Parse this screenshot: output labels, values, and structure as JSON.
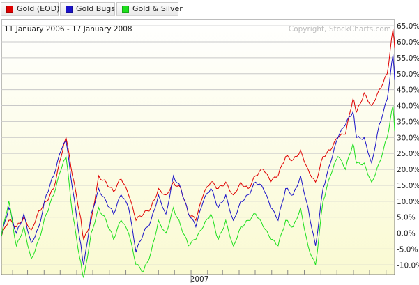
{
  "legend": {
    "items": [
      {
        "label": "Gold (EOD)",
        "color": "#e00000"
      },
      {
        "label": "Gold Bugs",
        "color": "#1a12c8"
      },
      {
        "label": "Gold & Silver",
        "color": "#1ee01e"
      }
    ]
  },
  "header": {
    "date_range": "11 January 2006 - 17 January 2008",
    "copyright": "Copyright, StockCharts.com"
  },
  "chart_data": {
    "type": "line",
    "title": "",
    "xlabel": "",
    "ylabel": "",
    "x_tick_labels": [
      "2007"
    ],
    "y_tick_labels": [
      "-10.0%",
      "-5.0%",
      "0.0%",
      "5.0%",
      "10.0%",
      "15.0%",
      "20.0%",
      "25.0%",
      "30.0%",
      "35.0%",
      "40.0%",
      "45.0%",
      "50.0%",
      "55.0%",
      "60.0%",
      "65.0%"
    ],
    "ylim": [
      -13,
      67
    ],
    "y_ticks": [
      -10,
      -5,
      0,
      5,
      10,
      15,
      20,
      25,
      30,
      35,
      40,
      45,
      50,
      55,
      60,
      65
    ],
    "xlim": [
      "2006-01-11",
      "2008-01-17"
    ],
    "grid": true,
    "legend": "top-left",
    "colors": {
      "plot_bg_top": "#ffffff",
      "plot_bg_bottom": "#fafad2",
      "grid": "#c8c8c8",
      "zero_line": "#000000"
    },
    "series": [
      {
        "name": "Gold (EOD)",
        "color": "#e00000",
        "x": [
          "2006-01-11",
          "2006-01-25",
          "2006-02-08",
          "2006-02-22",
          "2006-03-08",
          "2006-03-22",
          "2006-04-05",
          "2006-04-19",
          "2006-05-03",
          "2006-05-12",
          "2006-05-24",
          "2006-06-07",
          "2006-06-14",
          "2006-06-28",
          "2006-07-12",
          "2006-07-26",
          "2006-08-09",
          "2006-08-23",
          "2006-09-06",
          "2006-09-20",
          "2006-10-04",
          "2006-10-18",
          "2006-11-01",
          "2006-11-15",
          "2006-11-29",
          "2006-12-13",
          "2006-12-27",
          "2007-01-10",
          "2007-01-24",
          "2007-02-07",
          "2007-02-21",
          "2007-03-07",
          "2007-03-21",
          "2007-04-04",
          "2007-04-18",
          "2007-05-02",
          "2007-05-16",
          "2007-05-30",
          "2007-06-13",
          "2007-06-27",
          "2007-07-11",
          "2007-07-25",
          "2007-08-08",
          "2007-08-22",
          "2007-09-05",
          "2007-09-19",
          "2007-10-03",
          "2007-10-17",
          "2007-10-31",
          "2007-11-07",
          "2007-11-21",
          "2007-12-05",
          "2007-12-19",
          "2008-01-03",
          "2008-01-14",
          "2008-01-17"
        ],
        "y": [
          -1,
          4,
          2,
          5,
          1,
          7,
          10,
          14,
          24,
          30,
          18,
          6,
          -2,
          4,
          18,
          16,
          13,
          17,
          12,
          4,
          6,
          8,
          14,
          12,
          16,
          14,
          6,
          4,
          12,
          16,
          14,
          16,
          12,
          16,
          14,
          18,
          20,
          16,
          18,
          24,
          23,
          26,
          20,
          16,
          24,
          26,
          30,
          31,
          42,
          38,
          44,
          40,
          45,
          50,
          64,
          58
        ]
      },
      {
        "name": "Gold Bugs",
        "color": "#1a12c8",
        "x": [
          "2006-01-11",
          "2006-01-25",
          "2006-02-08",
          "2006-02-22",
          "2006-03-08",
          "2006-03-22",
          "2006-04-05",
          "2006-04-19",
          "2006-05-03",
          "2006-05-12",
          "2006-05-24",
          "2006-06-07",
          "2006-06-14",
          "2006-06-28",
          "2006-07-12",
          "2006-07-26",
          "2006-08-09",
          "2006-08-23",
          "2006-09-06",
          "2006-09-20",
          "2006-10-04",
          "2006-10-18",
          "2006-11-01",
          "2006-11-15",
          "2006-11-29",
          "2006-12-13",
          "2006-12-27",
          "2007-01-10",
          "2007-01-24",
          "2007-02-07",
          "2007-02-21",
          "2007-03-07",
          "2007-03-21",
          "2007-04-04",
          "2007-04-18",
          "2007-05-02",
          "2007-05-16",
          "2007-05-30",
          "2007-06-13",
          "2007-06-27",
          "2007-07-11",
          "2007-07-25",
          "2007-08-08",
          "2007-08-22",
          "2007-09-05",
          "2007-09-19",
          "2007-10-03",
          "2007-10-17",
          "2007-10-31",
          "2007-11-07",
          "2007-11-21",
          "2007-12-05",
          "2007-12-19",
          "2008-01-03",
          "2008-01-14",
          "2008-01-17"
        ],
        "y": [
          -1,
          8,
          0,
          6,
          -3,
          2,
          12,
          18,
          26,
          29,
          14,
          -2,
          -10,
          6,
          14,
          10,
          6,
          12,
          8,
          -6,
          0,
          4,
          12,
          6,
          18,
          14,
          6,
          2,
          10,
          14,
          8,
          12,
          4,
          10,
          12,
          16,
          14,
          8,
          4,
          14,
          12,
          18,
          8,
          -4,
          14,
          22,
          30,
          34,
          38,
          30,
          30,
          22,
          34,
          42,
          56,
          48
        ]
      },
      {
        "name": "Gold & Silver",
        "color": "#1ee01e",
        "x": [
          "2006-01-11",
          "2006-01-25",
          "2006-02-08",
          "2006-02-22",
          "2006-03-08",
          "2006-03-22",
          "2006-04-05",
          "2006-04-19",
          "2006-05-03",
          "2006-05-12",
          "2006-05-24",
          "2006-06-07",
          "2006-06-14",
          "2006-06-28",
          "2006-07-12",
          "2006-07-26",
          "2006-08-09",
          "2006-08-23",
          "2006-09-06",
          "2006-09-20",
          "2006-10-04",
          "2006-10-18",
          "2006-11-01",
          "2006-11-15",
          "2006-11-29",
          "2006-12-13",
          "2006-12-27",
          "2007-01-10",
          "2007-01-24",
          "2007-02-07",
          "2007-02-21",
          "2007-03-07",
          "2007-03-21",
          "2007-04-04",
          "2007-04-18",
          "2007-05-02",
          "2007-05-16",
          "2007-05-30",
          "2007-06-13",
          "2007-06-27",
          "2007-07-11",
          "2007-07-25",
          "2007-08-08",
          "2007-08-22",
          "2007-09-05",
          "2007-09-19",
          "2007-10-03",
          "2007-10-17",
          "2007-10-31",
          "2007-11-07",
          "2007-11-21",
          "2007-12-05",
          "2007-12-19",
          "2008-01-03",
          "2008-01-14",
          "2008-01-17"
        ],
        "y": [
          -1,
          10,
          -4,
          2,
          -8,
          -2,
          6,
          12,
          20,
          24,
          6,
          -8,
          -14,
          0,
          8,
          4,
          -2,
          4,
          0,
          -10,
          -12,
          -6,
          4,
          0,
          8,
          2,
          -4,
          -2,
          2,
          6,
          -2,
          4,
          -4,
          2,
          4,
          6,
          2,
          -2,
          -4,
          4,
          2,
          8,
          -4,
          -10,
          10,
          18,
          24,
          20,
          28,
          22,
          22,
          16,
          22,
          30,
          40,
          32
        ]
      }
    ]
  }
}
